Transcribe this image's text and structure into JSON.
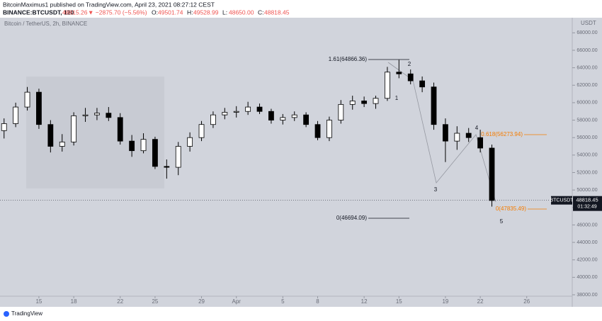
{
  "header": {
    "line1": "BitcoinMaximus1 published on TradingView.com, April 23, 2021 08:27:12 CEST",
    "symbol": "BINANCE:BTCUSDT, 120",
    "last": "48815.26",
    "change": "▼ −2875.70 (−5.56%)",
    "ohlc": [
      {
        "label": "O:",
        "value": "49501.74"
      },
      {
        "label": "H:",
        "value": "49528.99"
      },
      {
        "label": "L:",
        "value": "48650.00"
      },
      {
        "label": "C:",
        "value": "48818.45"
      }
    ]
  },
  "chart_data": {
    "type": "candlestick",
    "title": "Bitcoin / TetherUS, 2h, BINANCE",
    "y_unit": "USDT",
    "x": [
      11,
      12,
      13,
      14,
      15,
      16,
      17,
      18,
      19,
      20,
      21,
      22,
      23,
      24,
      25,
      26,
      27,
      28,
      29,
      30,
      31,
      32,
      33,
      34,
      35,
      36,
      37,
      38,
      39,
      40,
      41,
      42,
      43,
      44,
      45,
      46,
      47,
      48,
      49,
      50,
      51,
      52,
      53
    ],
    "open": [
      56800,
      57600,
      59500,
      61200,
      57500,
      55000,
      55500,
      58500,
      58600,
      58800,
      58300,
      55600,
      54500,
      55800,
      52700,
      52600,
      55000,
      56000,
      57500,
      58600,
      58900,
      59000,
      59500,
      59000,
      58000,
      58300,
      58600,
      57500,
      56000,
      58000,
      59800,
      60200,
      59900,
      60500,
      63500,
      63300,
      62500,
      61800,
      57500,
      55600,
      56500,
      56000,
      54800
    ],
    "high": [
      58200,
      60000,
      61800,
      61600,
      58000,
      56400,
      58900,
      59400,
      59400,
      59500,
      58800,
      56300,
      56500,
      56100,
      53500,
      55500,
      56600,
      57900,
      59000,
      59400,
      59600,
      60100,
      59900,
      59300,
      58700,
      59000,
      58900,
      57900,
      58400,
      60300,
      60800,
      60700,
      60800,
      64100,
      64900,
      63800,
      63000,
      62300,
      58200,
      57300,
      57100,
      56900,
      55200
    ],
    "low": [
      55900,
      57200,
      59100,
      57000,
      54300,
      54400,
      55100,
      57800,
      58000,
      57900,
      55200,
      53800,
      54200,
      52400,
      51300,
      51700,
      54400,
      55600,
      57100,
      58100,
      58300,
      58600,
      58700,
      57600,
      57500,
      57900,
      57200,
      55700,
      55600,
      57600,
      59200,
      59500,
      59300,
      60200,
      62800,
      62100,
      61200,
      56900,
      53200,
      54600,
      55500,
      54300,
      48100
    ],
    "close": [
      57600,
      59500,
      61200,
      57500,
      55000,
      55500,
      58500,
      58600,
      58800,
      58300,
      55600,
      54500,
      55800,
      52700,
      52600,
      55000,
      56000,
      57500,
      58600,
      58900,
      59000,
      59500,
      59000,
      58000,
      58300,
      58600,
      57500,
      56000,
      58000,
      59800,
      60200,
      59900,
      60500,
      63500,
      63300,
      62500,
      61800,
      57500,
      55600,
      56500,
      56000,
      54800,
      48800
    ],
    "up_color": "#ffffff",
    "down_color": "#000000",
    "xlim": [
      10.65,
      59.92
    ],
    "ylim": [
      37270,
      69730
    ],
    "xticks": [
      {
        "value": 14,
        "label": "15"
      },
      {
        "value": 17,
        "label": "18"
      },
      {
        "value": 21,
        "label": "22"
      },
      {
        "value": 24,
        "label": "25"
      },
      {
        "value": 28,
        "label": "29"
      },
      {
        "value": 31,
        "label": "Apr"
      },
      {
        "value": 35,
        "label": "5"
      },
      {
        "value": 38,
        "label": "8"
      },
      {
        "value": 42,
        "label": "12"
      },
      {
        "value": 45,
        "label": "15"
      },
      {
        "value": 49,
        "label": "19"
      },
      {
        "value": 52,
        "label": "22"
      },
      {
        "value": 56,
        "label": "26"
      }
    ],
    "yticks": [
      {
        "value": 38000,
        "label": "38000.00"
      },
      {
        "value": 40000,
        "label": "40000.00"
      },
      {
        "value": 42000,
        "label": "42000.00"
      },
      {
        "value": 44000,
        "label": "44000.00"
      },
      {
        "value": 46000,
        "label": "46000.00"
      },
      {
        "value": 48000,
        "label": "48000.00"
      },
      {
        "value": 50000,
        "label": "50000.00"
      },
      {
        "value": 52000,
        "label": "52000.00"
      },
      {
        "value": 54000,
        "label": "54000.00"
      },
      {
        "value": 56000,
        "label": "56000.00"
      },
      {
        "value": 58000,
        "label": "58000.00"
      },
      {
        "value": 60000,
        "label": "60000.00"
      },
      {
        "value": 62000,
        "label": "62000.00"
      },
      {
        "value": 64000,
        "label": "64000.00"
      },
      {
        "value": 66000,
        "label": "66000.00"
      },
      {
        "value": 68000,
        "label": "68000.00"
      }
    ],
    "annotations": [
      "1.61(64866.36)",
      "0.618(56273.94)",
      "0(47835.49)",
      "0(46694.09)"
    ],
    "wave_labels": [
      "1",
      "2",
      "3",
      "4",
      "5"
    ],
    "last_price": {
      "symbol": "BTCUSDT",
      "value": 48818.45,
      "label": "48818.45",
      "countdown": "01:32:49"
    }
  },
  "footer": {
    "brand": "TradingView"
  }
}
